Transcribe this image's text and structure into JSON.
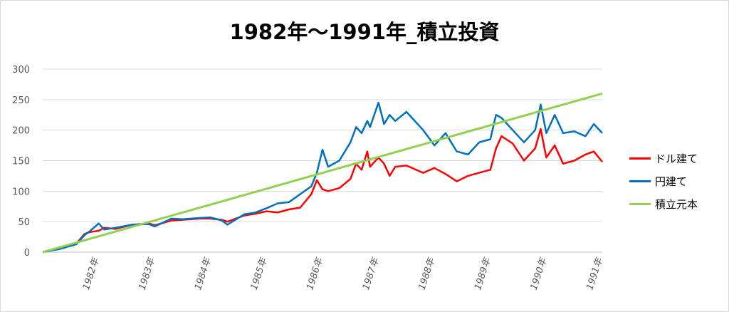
{
  "chart_data": {
    "type": "line",
    "title": "1982年～1991年_積立投資",
    "ylim": [
      0,
      300
    ],
    "yticks": [
      0,
      50,
      100,
      150,
      200,
      250,
      300
    ],
    "xlim": [
      1981,
      1991
    ],
    "xticks": [
      {
        "x": 1982,
        "label": "1982年"
      },
      {
        "x": 1983,
        "label": "1983年"
      },
      {
        "x": 1984,
        "label": "1984年"
      },
      {
        "x": 1985,
        "label": "1985年"
      },
      {
        "x": 1986,
        "label": "1986年"
      },
      {
        "x": 1987,
        "label": "1987年"
      },
      {
        "x": 1988,
        "label": "1988年"
      },
      {
        "x": 1989,
        "label": "1989年"
      },
      {
        "x": 1990,
        "label": "1990年"
      },
      {
        "x": 1991,
        "label": "1991年"
      }
    ],
    "grid": true,
    "legend": "right",
    "series": [
      {
        "name": "ドル建て",
        "color": "#ff0000",
        "x": [
          1981.0,
          1981.3,
          1981.6,
          1981.75,
          1981.85,
          1982.0,
          1982.1,
          1982.3,
          1982.6,
          1982.9,
          1983.0,
          1983.3,
          1983.5,
          1983.8,
          1984.0,
          1984.2,
          1984.3,
          1984.6,
          1984.8,
          1985.0,
          1985.2,
          1985.4,
          1985.6,
          1985.8,
          1985.9,
          1986.0,
          1986.1,
          1986.3,
          1986.5,
          1986.6,
          1986.7,
          1986.8,
          1986.85,
          1987.0,
          1987.1,
          1987.2,
          1987.3,
          1987.5,
          1987.8,
          1988.0,
          1988.2,
          1988.4,
          1988.6,
          1988.8,
          1989.0,
          1989.1,
          1989.2,
          1989.4,
          1989.6,
          1989.8,
          1989.9,
          1990.0,
          1990.15,
          1990.3,
          1990.5,
          1990.7,
          1990.85,
          1991.0
        ],
        "values": [
          0,
          6,
          14,
          30,
          33,
          35,
          40,
          38,
          45,
          47,
          44,
          52,
          53,
          55,
          55,
          53,
          50,
          60,
          63,
          67,
          65,
          70,
          73,
          95,
          118,
          103,
          100,
          105,
          120,
          145,
          135,
          165,
          140,
          155,
          145,
          125,
          140,
          142,
          130,
          138,
          128,
          116,
          125,
          130,
          135,
          170,
          190,
          178,
          150,
          170,
          202,
          155,
          175,
          145,
          150,
          160,
          165,
          148
        ]
      },
      {
        "name": "円建て",
        "color": "#0070c0",
        "x": [
          1981.0,
          1981.3,
          1981.6,
          1981.75,
          1981.85,
          1982.0,
          1982.1,
          1982.3,
          1982.6,
          1982.9,
          1983.0,
          1983.3,
          1983.5,
          1983.8,
          1984.0,
          1984.2,
          1984.3,
          1984.6,
          1984.8,
          1985.0,
          1985.2,
          1985.4,
          1985.6,
          1985.8,
          1985.9,
          1986.0,
          1986.1,
          1986.3,
          1986.5,
          1986.6,
          1986.7,
          1986.8,
          1986.85,
          1987.0,
          1987.1,
          1987.2,
          1987.3,
          1987.5,
          1987.8,
          1988.0,
          1988.2,
          1988.4,
          1988.6,
          1988.8,
          1989.0,
          1989.1,
          1989.2,
          1989.4,
          1989.6,
          1989.8,
          1989.9,
          1990.0,
          1990.15,
          1990.3,
          1990.5,
          1990.7,
          1990.85,
          1991.0
        ],
        "values": [
          0,
          5,
          13,
          28,
          35,
          47,
          37,
          40,
          45,
          46,
          42,
          55,
          54,
          56,
          57,
          52,
          45,
          62,
          65,
          72,
          80,
          82,
          95,
          108,
          130,
          168,
          140,
          150,
          180,
          205,
          195,
          215,
          205,
          245,
          210,
          225,
          215,
          230,
          200,
          175,
          195,
          165,
          160,
          180,
          185,
          225,
          220,
          200,
          180,
          200,
          242,
          195,
          225,
          195,
          198,
          190,
          210,
          195
        ]
      },
      {
        "name": "積立元本",
        "color": "#92d050",
        "x": [
          1981.0,
          1991.0
        ],
        "values": [
          0,
          260
        ]
      }
    ]
  }
}
